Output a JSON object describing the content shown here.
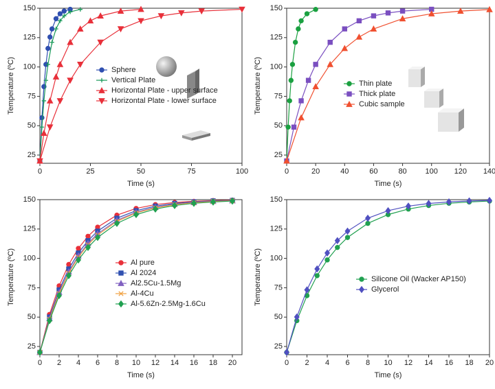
{
  "chart_data": [
    {
      "type": "line",
      "xlabel": "Time (s)",
      "ylabel": "Temperature (ºC)",
      "xlim": [
        0,
        100
      ],
      "ylim": [
        18,
        150
      ],
      "xticks": [
        0,
        25,
        50,
        75,
        100
      ],
      "yticks": [
        25,
        50,
        75,
        100,
        125,
        150
      ],
      "series": [
        {
          "name": "Sphere",
          "color": "#2f4fb0",
          "marker": "circle",
          "x": [
            0,
            1,
            2,
            3,
            4,
            5,
            6,
            8,
            10,
            12,
            15
          ],
          "values": [
            20,
            56.8,
            83.3,
            102.2,
            115.8,
            125.5,
            132.4,
            141.1,
            145.3,
            147.6,
            149.1
          ]
        },
        {
          "name": "Vertical Plate",
          "color": "#1a9a5a",
          "marker": "plus",
          "x": [
            0,
            1,
            2,
            3,
            4,
            6,
            8,
            10,
            12,
            15,
            20
          ],
          "values": [
            20,
            48.8,
            71.2,
            88.6,
            102.2,
            121,
            132.4,
            139.3,
            143.5,
            146.9,
            149
          ]
        },
        {
          "name": "Horizontal Plate - upper surface",
          "color": "#e8303a",
          "marker": "triangle",
          "x": [
            0,
            2,
            5,
            8,
            10,
            15,
            20,
            25,
            30,
            40,
            50
          ],
          "values": [
            20,
            43.6,
            71.2,
            91.6,
            102.2,
            121,
            132.4,
            139.3,
            143.5,
            147.6,
            149.1
          ]
        },
        {
          "name": "Horizontal Plate - lower surface",
          "color": "#e8303a",
          "marker": "triangle-down",
          "x": [
            0,
            5,
            10,
            15,
            20,
            30,
            40,
            50,
            60,
            70,
            80,
            100
          ],
          "values": [
            20,
            48.8,
            71.2,
            88.6,
            102.2,
            121,
            132.4,
            139.3,
            143.5,
            146,
            147.6,
            149.1
          ]
        }
      ]
    },
    {
      "type": "line",
      "xlabel": "Time (s)",
      "ylabel": "Temperature (ºC)",
      "xlim": [
        0,
        140
      ],
      "ylim": [
        18,
        150
      ],
      "xticks": [
        0,
        20,
        40,
        60,
        80,
        100,
        120,
        140
      ],
      "yticks": [
        25,
        50,
        75,
        100,
        125,
        150
      ],
      "series": [
        {
          "name": "Thin plate",
          "color": "#1aa040",
          "marker": "circle",
          "x": [
            0,
            1,
            2,
            3,
            4,
            6,
            8,
            10,
            14,
            20
          ],
          "values": [
            20,
            48.8,
            71.2,
            88.6,
            102.2,
            121,
            132.4,
            139.3,
            145.3,
            149
          ]
        },
        {
          "name": "Thick plate",
          "color": "#7a4fc0",
          "marker": "square",
          "x": [
            0,
            5,
            10,
            15,
            20,
            30,
            40,
            50,
            60,
            70,
            80,
            100
          ],
          "values": [
            20,
            48.8,
            71.2,
            88.6,
            102.2,
            121,
            132.4,
            139.3,
            143.5,
            146,
            147.6,
            149.1
          ]
        },
        {
          "name": "Cubic sample",
          "color": "#f05030",
          "marker": "triangle",
          "x": [
            0,
            10,
            20,
            30,
            40,
            50,
            60,
            80,
            100,
            120,
            140
          ],
          "values": [
            20,
            56.8,
            83.3,
            102.2,
            115.8,
            125.5,
            132.4,
            141.1,
            145.3,
            147.6,
            148.9
          ]
        }
      ]
    },
    {
      "type": "line",
      "xlabel": "Time (s)",
      "ylabel": "Temperature (ºC)",
      "xlim": [
        0,
        21
      ],
      "ylim": [
        18,
        150
      ],
      "xticks": [
        0,
        2,
        4,
        6,
        8,
        10,
        12,
        14,
        16,
        18,
        20
      ],
      "yticks": [
        25,
        50,
        75,
        100,
        125,
        150
      ],
      "series": [
        {
          "name": "Al pure",
          "color": "#e8303a",
          "marker": "circle",
          "x": [
            0,
            1,
            2,
            3,
            4,
            5,
            6,
            8,
            10,
            12,
            14,
            16,
            18,
            20
          ],
          "values": [
            20,
            52.3,
            76.6,
            94.8,
            108.5,
            118.8,
            126.6,
            136.8,
            142.5,
            145.8,
            147.6,
            148.6,
            149.2,
            149.6
          ]
        },
        {
          "name": "Al 2024",
          "color": "#3050b0",
          "marker": "square",
          "x": [
            0,
            1,
            2,
            3,
            4,
            5,
            6,
            8,
            10,
            12,
            14,
            16,
            18,
            20
          ],
          "values": [
            20,
            50.1,
            73.2,
            91.0,
            104.6,
            115.1,
            123.2,
            134.2,
            140.6,
            144.5,
            146.7,
            148.1,
            148.9,
            149.3
          ]
        },
        {
          "name": "Al2.5Cu-1.5Mg",
          "color": "#8060c0",
          "marker": "triangle",
          "x": [
            0,
            1,
            2,
            3,
            4,
            5,
            6,
            8,
            10,
            12,
            14,
            16,
            18,
            20
          ],
          "values": [
            20,
            48.8,
            71.2,
            88.6,
            102.2,
            112.8,
            121.0,
            132.4,
            139.3,
            143.5,
            146.1,
            147.6,
            148.6,
            149.1
          ]
        },
        {
          "name": "Al-4Cu",
          "color": "#f0a040",
          "marker": "x",
          "x": [
            0,
            1,
            2,
            3,
            4,
            5,
            6,
            8,
            10,
            12,
            14,
            16,
            18,
            20
          ],
          "values": [
            20,
            48.1,
            70.2,
            87.5,
            101.0,
            111.6,
            119.9,
            131.5,
            138.7,
            143.0,
            145.7,
            147.4,
            148.4,
            149.0
          ]
        },
        {
          "name": "Al-5.6Zn-2.5Mg-1.6Cu",
          "color": "#20a050",
          "marker": "diamond",
          "x": [
            0,
            1,
            2,
            3,
            4,
            5,
            6,
            8,
            10,
            12,
            14,
            16,
            18,
            20
          ],
          "values": [
            20,
            47.0,
            68.3,
            85.3,
            98.7,
            109.3,
            117.8,
            129.8,
            137.3,
            142.0,
            145.0,
            146.9,
            148.0,
            148.8
          ]
        }
      ]
    },
    {
      "type": "line",
      "xlabel": "Time (s)",
      "ylabel": "Temperature (ºC)",
      "xlim": [
        0,
        20
      ],
      "ylim": [
        18,
        150
      ],
      "xticks": [
        0,
        2,
        4,
        6,
        8,
        10,
        12,
        14,
        16,
        18,
        20
      ],
      "yticks": [
        25,
        50,
        75,
        100,
        125,
        150
      ],
      "series": [
        {
          "name": "Silicone Oil (Wacker AP150)",
          "color": "#20a050",
          "marker": "circle",
          "x": [
            0,
            1,
            2,
            3,
            4,
            5,
            6,
            8,
            10,
            12,
            14,
            16,
            18,
            20
          ],
          "values": [
            20,
            47.0,
            68.3,
            85.3,
            98.7,
            109.3,
            117.8,
            129.8,
            137.3,
            142.0,
            145.0,
            146.9,
            148.0,
            148.8
          ]
        },
        {
          "name": "Glycerol",
          "color": "#5050c0",
          "marker": "diamond",
          "x": [
            0,
            1,
            2,
            3,
            4,
            5,
            6,
            8,
            10,
            12,
            14,
            16,
            18,
            20
          ],
          "values": [
            20,
            50.1,
            73.2,
            91.0,
            104.6,
            115.1,
            123.2,
            134.2,
            140.6,
            144.5,
            146.7,
            148.1,
            148.9,
            149.3
          ]
        }
      ]
    }
  ]
}
